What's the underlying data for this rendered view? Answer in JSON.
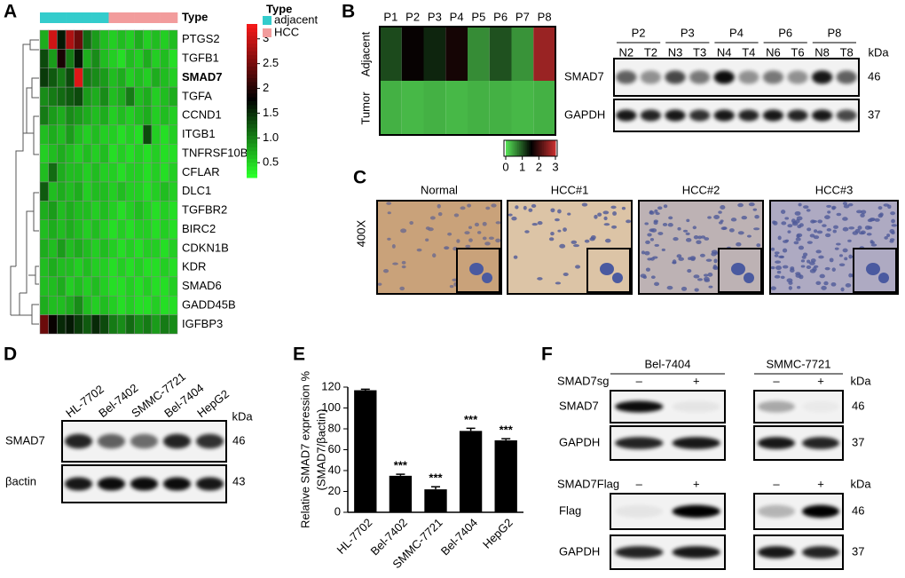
{
  "panel_labels": [
    "A",
    "B",
    "C",
    "D",
    "E",
    "F"
  ],
  "heatmap_a": {
    "type_label": "Type",
    "genes": [
      "PTGS2",
      "TGFB1",
      "SMAD7",
      "TGFA",
      "CCND1",
      "ITGB1",
      "TNFRSF10B",
      "CFLAR",
      "DLC1",
      "TGFBR2",
      "BIRC2",
      "CDKN1B",
      "KDR",
      "SMAD6",
      "GADD45B",
      "IGFBP3"
    ],
    "column_groups": [
      0,
      0,
      0,
      0,
      0,
      0,
      0,
      0,
      1,
      1,
      1,
      1,
      1,
      1,
      1,
      1
    ],
    "values": [
      [
        0.7,
        3.0,
        1.6,
        2.8,
        2.4,
        1.1,
        0.8,
        0.6,
        0.5,
        0.6,
        0.5,
        0.7,
        0.5,
        0.6,
        0.5,
        0.6
      ],
      [
        1.3,
        0.8,
        1.9,
        1.0,
        1.6,
        0.7,
        0.9,
        0.6,
        0.5,
        0.4,
        0.6,
        0.5,
        0.7,
        0.5,
        0.6,
        0.4
      ],
      [
        1.4,
        1.2,
        1.0,
        1.3,
        3.1,
        1.0,
        0.9,
        0.8,
        0.6,
        0.7,
        0.5,
        0.6,
        0.5,
        0.7,
        0.6,
        0.5
      ],
      [
        0.9,
        1.0,
        1.1,
        1.2,
        1.3,
        0.8,
        0.7,
        0.9,
        0.6,
        0.7,
        1.0,
        0.6,
        0.7,
        0.5,
        0.6,
        0.7
      ],
      [
        1.0,
        0.8,
        0.7,
        0.9,
        0.8,
        0.7,
        0.6,
        0.7,
        0.5,
        0.6,
        0.5,
        0.6,
        0.7,
        0.5,
        0.6,
        0.5
      ],
      [
        0.6,
        0.7,
        0.6,
        0.8,
        0.6,
        0.5,
        0.6,
        0.5,
        0.5,
        0.4,
        0.5,
        0.4,
        1.3,
        0.5,
        0.4,
        0.5
      ],
      [
        0.5,
        0.6,
        0.7,
        0.6,
        0.5,
        0.6,
        0.5,
        0.6,
        0.4,
        0.5,
        0.4,
        0.5,
        0.4,
        0.5,
        0.4,
        0.4
      ],
      [
        0.6,
        1.1,
        0.7,
        0.6,
        0.6,
        0.5,
        0.6,
        0.5,
        0.5,
        0.4,
        0.5,
        0.5,
        0.4,
        0.5,
        0.4,
        0.5
      ],
      [
        1.2,
        0.6,
        0.7,
        0.6,
        0.7,
        0.5,
        0.6,
        0.6,
        0.5,
        0.6,
        0.5,
        0.5,
        0.4,
        0.5,
        0.6,
        0.5
      ],
      [
        0.7,
        0.8,
        0.6,
        0.7,
        0.6,
        0.6,
        0.5,
        0.6,
        0.5,
        0.4,
        0.5,
        0.6,
        0.5,
        0.4,
        0.5,
        0.4
      ],
      [
        0.6,
        0.7,
        0.6,
        0.7,
        0.6,
        0.5,
        0.6,
        0.5,
        0.4,
        0.5,
        0.4,
        0.5,
        0.5,
        0.4,
        0.5,
        0.4
      ],
      [
        0.7,
        0.6,
        0.8,
        0.6,
        0.7,
        0.6,
        0.5,
        0.6,
        0.5,
        0.4,
        0.5,
        0.4,
        0.5,
        0.5,
        0.4,
        0.5
      ],
      [
        0.6,
        0.7,
        0.6,
        0.6,
        0.5,
        0.6,
        0.5,
        0.5,
        0.4,
        0.5,
        0.4,
        0.5,
        0.4,
        0.4,
        0.5,
        0.4
      ],
      [
        0.6,
        0.6,
        0.7,
        0.5,
        0.6,
        0.5,
        0.6,
        0.5,
        0.4,
        0.4,
        0.5,
        0.4,
        0.5,
        0.4,
        0.4,
        0.5
      ],
      [
        0.7,
        0.6,
        0.6,
        0.7,
        0.9,
        0.6,
        0.5,
        0.6,
        0.5,
        0.4,
        0.5,
        0.4,
        0.4,
        0.5,
        0.4,
        0.4
      ],
      [
        2.4,
        1.8,
        1.5,
        1.6,
        1.4,
        1.2,
        1.5,
        1.3,
        1.0,
        0.9,
        1.1,
        0.9,
        1.0,
        0.8,
        1.0,
        0.9
      ]
    ],
    "colorlim": [
      0.2,
      3.3
    ],
    "colors": [
      "#2bff2b",
      "#000000",
      "#ff1a1a"
    ],
    "group_colors": [
      "#33cccc",
      "#f29c9c"
    ],
    "legend_title": "Type",
    "groups": [
      "adjacent",
      "HCC"
    ],
    "colorbar_ticks": [
      0.5,
      {
        "value": 1,
        "label": "1.0"
      },
      1.5,
      2,
      2.5,
      3
    ]
  },
  "heatmap_b": {
    "columns": [
      "P1",
      "P2",
      "P3",
      "P4",
      "P5",
      "P6",
      "P7",
      "P8"
    ],
    "rows": [
      "Adjacent",
      "Tumor"
    ],
    "values": [
      [
        1.0,
        1.55,
        1.25,
        1.65,
        0.55,
        0.95,
        0.5,
        2.6
      ],
      [
        0.3,
        0.25,
        0.3,
        0.25,
        0.3,
        0.3,
        0.25,
        0.3
      ]
    ],
    "colorlim": [
      0,
      3
    ],
    "colorbar_ticks": [
      0,
      1,
      2,
      3
    ],
    "colors": [
      "#55dd55",
      "#000000",
      "#d03030"
    ]
  },
  "blot_b": {
    "groups": [
      "P2",
      "P3",
      "P4",
      "P6",
      "P8"
    ],
    "lanes": [
      "N2",
      "T2",
      "N3",
      "T3",
      "N4",
      "T4",
      "N6",
      "T6",
      "N8",
      "T8"
    ],
    "proteins": [
      "SMAD7",
      "GAPDH"
    ],
    "sizes": [
      46,
      37
    ],
    "unit": "kDa"
  },
  "ihc_c": {
    "titles": [
      "Normal",
      "HCC#1",
      "HCC#2",
      "HCC#3"
    ],
    "magnification": "400X"
  },
  "blot_d": {
    "lanes": [
      "HL-7702",
      "Bel-7402",
      "SMMC-7721",
      "Bel-7404",
      "HepG2"
    ],
    "proteins": [
      "SMAD7",
      "βactin"
    ],
    "sizes": [
      46,
      43
    ],
    "unit": "kDa"
  },
  "chart_data": {
    "type": "bar",
    "y_label": [
      "Relative SMAD7 expression %",
      "(SMAD7/βactin)"
    ],
    "categories": [
      "HL-7702",
      "Bel-7402",
      "SMMC-7721",
      "Bel-7404",
      "HepG2"
    ],
    "values": [
      117,
      35,
      22,
      78,
      69
    ],
    "errors": [
      1,
      1.5,
      2.5,
      2.5,
      1.5
    ],
    "significance": [
      null,
      "***",
      "***",
      "***",
      "***"
    ],
    "color": "#000000",
    "ylim": [
      0,
      120
    ],
    "yticks": [
      0,
      20,
      40,
      60,
      80,
      100,
      120
    ]
  },
  "blot_f": {
    "cell_lines": [
      "Bel-7404",
      "SMMC-7721"
    ],
    "sg_label": "SMAD7sg",
    "flag_label": "SMAD7Flag",
    "signs": [
      "–",
      "+"
    ],
    "sg_proteins": [
      "SMAD7",
      "GAPDH"
    ],
    "sg_sizes": [
      46,
      37
    ],
    "flag_proteins": [
      "Flag",
      "GAPDH"
    ],
    "flag_sizes": [
      46,
      37
    ],
    "unit": "kDa"
  }
}
